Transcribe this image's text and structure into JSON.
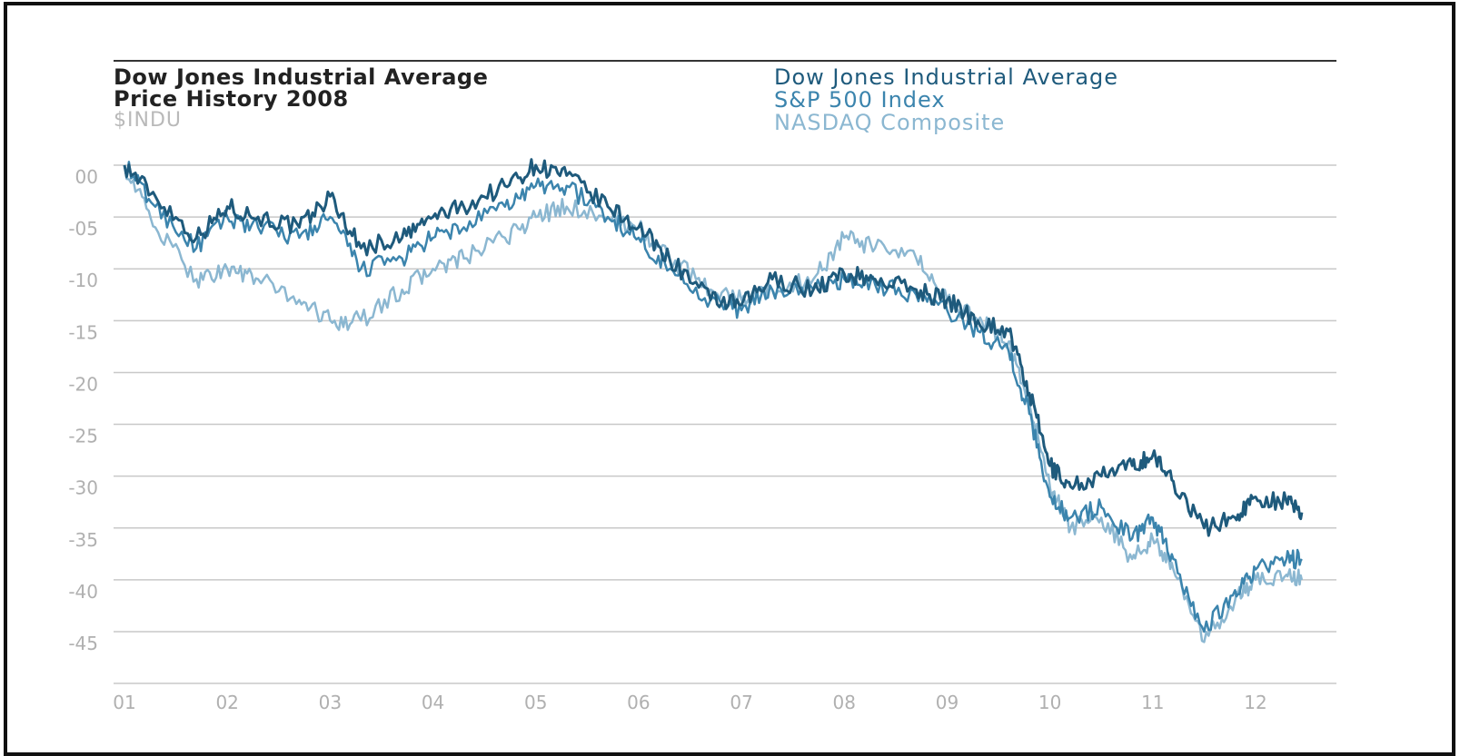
{
  "chart_data": {
    "type": "line",
    "title": "Dow Jones Industrial Average",
    "subtitle": "Price History 2008",
    "ticker": "$INDU",
    "ylabel": "",
    "xlabel": "",
    "x_ticks": [
      "01",
      "02",
      "03",
      "04",
      "05",
      "06",
      "07",
      "08",
      "09",
      "10",
      "11",
      "12"
    ],
    "y_ticks": [
      "00",
      "-05",
      "-10",
      "-15",
      "-20",
      "-25",
      "-30",
      "-35",
      "-40",
      "-45"
    ],
    "ylim": [
      -49,
      1
    ],
    "xlim": [
      1,
      13
    ],
    "grid": "horizontal",
    "legend_position": "top-right",
    "series": [
      {
        "name": "Dow Jones Industrial Average",
        "color": "#1e5a7c",
        "x": [
          1.0,
          1.3,
          1.7,
          2.0,
          2.3,
          2.7,
          3.0,
          3.3,
          3.7,
          4.0,
          4.3,
          4.7,
          5.0,
          5.3,
          5.7,
          6.0,
          6.3,
          6.7,
          7.0,
          7.3,
          7.7,
          8.0,
          8.3,
          8.7,
          9.0,
          9.3,
          9.6,
          9.8,
          10.0,
          10.2,
          10.5,
          10.8,
          11.0,
          11.2,
          11.5,
          11.8,
          12.0,
          12.3,
          12.45
        ],
        "values": [
          0,
          -3,
          -7,
          -4,
          -5,
          -6,
          -3,
          -8,
          -7,
          -5,
          -4,
          -2,
          0,
          -1,
          -4,
          -6,
          -9,
          -13,
          -13.5,
          -11,
          -12,
          -10.5,
          -11,
          -12,
          -13,
          -15,
          -16,
          -22,
          -29,
          -31,
          -30,
          -29,
          -28,
          -30.5,
          -35,
          -34,
          -32,
          -32.5,
          -33.5
        ]
      },
      {
        "name": "S&P 500 Index",
        "color": "#3b84ad",
        "x": [
          1.0,
          1.3,
          1.7,
          2.0,
          2.3,
          2.7,
          3.0,
          3.3,
          3.7,
          4.0,
          4.3,
          4.7,
          5.0,
          5.3,
          5.7,
          6.0,
          6.3,
          6.7,
          7.0,
          7.3,
          7.7,
          8.0,
          8.3,
          8.7,
          9.0,
          9.3,
          9.6,
          9.8,
          10.0,
          10.2,
          10.5,
          10.8,
          11.0,
          11.2,
          11.5,
          11.8,
          12.0,
          12.3,
          12.45
        ],
        "values": [
          0,
          -4,
          -8,
          -5,
          -6,
          -7,
          -5,
          -10,
          -9,
          -7,
          -6,
          -4,
          -2,
          -2,
          -5,
          -7,
          -10,
          -13,
          -14,
          -12,
          -12,
          -11,
          -11.5,
          -12.5,
          -14,
          -16,
          -18,
          -24,
          -32,
          -34,
          -33,
          -36,
          -34,
          -38,
          -45,
          -41,
          -39,
          -38,
          -38
        ]
      },
      {
        "name": "NASDAQ Composite",
        "color": "#8bb7d1",
        "x": [
          1.0,
          1.3,
          1.7,
          2.0,
          2.3,
          2.7,
          3.0,
          3.3,
          3.7,
          4.0,
          4.3,
          4.7,
          5.0,
          5.3,
          5.7,
          6.0,
          6.3,
          6.7,
          7.0,
          7.3,
          7.7,
          8.0,
          8.3,
          8.7,
          9.0,
          9.3,
          9.6,
          9.8,
          10.0,
          10.2,
          10.5,
          10.8,
          11.0,
          11.2,
          11.5,
          11.8,
          12.0,
          12.3,
          12.45
        ],
        "values": [
          0,
          -6,
          -11,
          -10,
          -11,
          -13,
          -15,
          -15,
          -12,
          -10,
          -9,
          -7,
          -5,
          -4,
          -5,
          -6,
          -9,
          -12,
          -13,
          -12,
          -11,
          -7,
          -8,
          -9,
          -13,
          -15,
          -17,
          -23,
          -31,
          -35,
          -34,
          -38,
          -36,
          -39,
          -46,
          -42,
          -40,
          -39.5,
          -40
        ]
      }
    ]
  }
}
